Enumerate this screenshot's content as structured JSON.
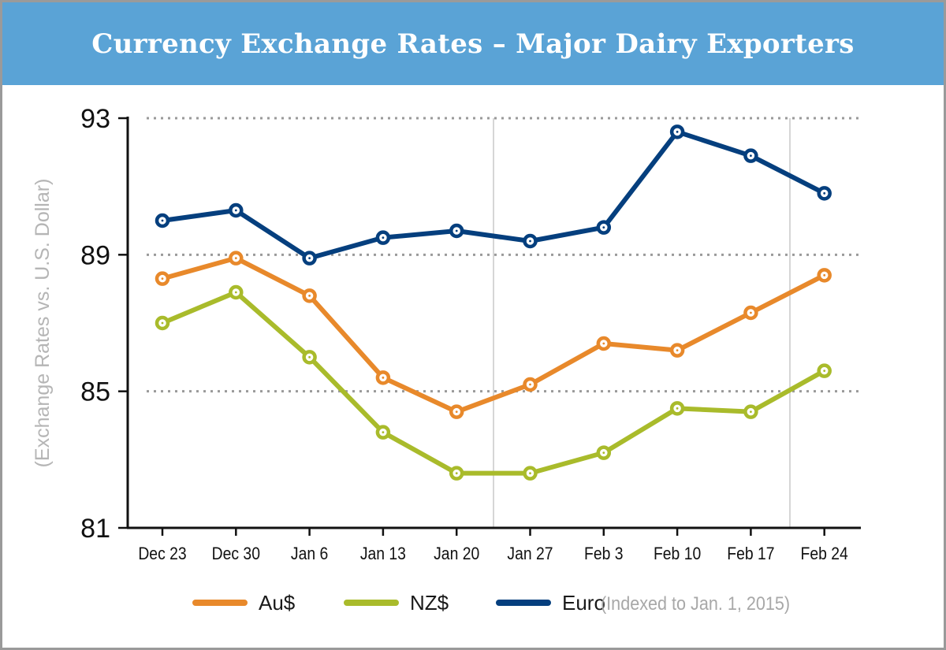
{
  "chart_data": {
    "type": "line",
    "title": "Currency Exchange Rates – Major Dairy Exporters",
    "ylabel": "(Exchange Rates vs. U.S. Dollar)",
    "xlabel": "",
    "ylim": [
      81,
      93
    ],
    "yticks": [
      "93",
      "89",
      "85",
      "81"
    ],
    "grid": true,
    "legend_position": "bottom",
    "note": "(Indexed to Jan. 1, 2015)",
    "categories": [
      "Dec 23",
      "Dec 30",
      "Jan 6",
      "Jan 13",
      "Jan 20",
      "Jan 27",
      "Feb 3",
      "Feb 10",
      "Feb 17",
      "Feb 24"
    ],
    "series": [
      {
        "name": "Au$",
        "color": "#e8892b",
        "values": [
          88.3,
          88.9,
          87.8,
          85.4,
          84.4,
          85.2,
          86.4,
          86.2,
          87.3,
          88.4
        ]
      },
      {
        "name": "NZ$",
        "color": "#a9bb2b",
        "values": [
          87.0,
          87.9,
          86.0,
          83.8,
          82.6,
          82.6,
          83.2,
          84.5,
          84.4,
          85.6
        ]
      },
      {
        "name": "Euro",
        "color": "#053f7e",
        "values": [
          90.0,
          90.3,
          88.9,
          89.5,
          89.7,
          89.4,
          89.8,
          92.6,
          91.9,
          90.8
        ]
      }
    ]
  }
}
